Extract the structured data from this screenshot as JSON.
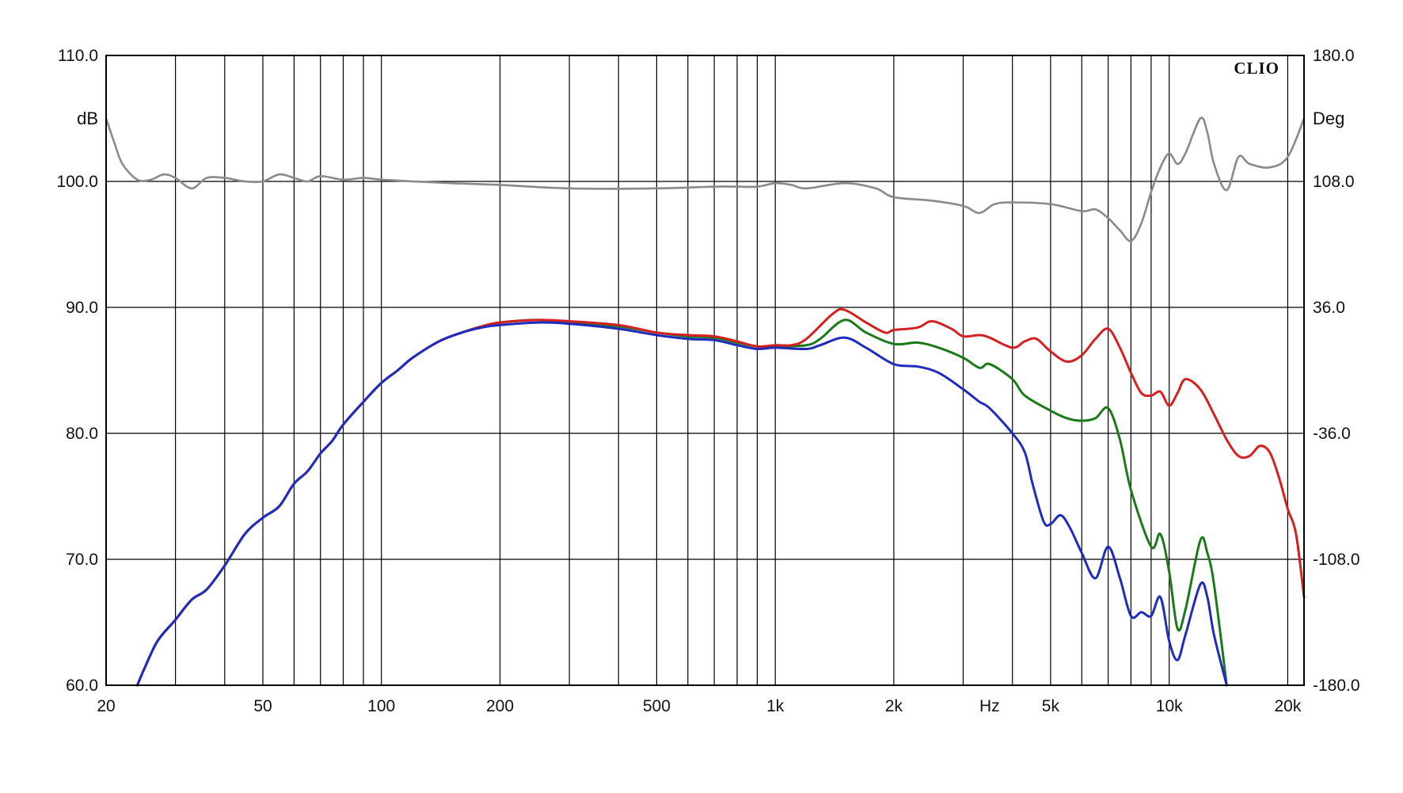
{
  "chart_data": {
    "type": "line",
    "title": "",
    "brand": "CLIO",
    "xlabel": "Hz",
    "ylabel_left": "dB",
    "ylabel_right": "Deg",
    "x_scale": "log",
    "xlim": [
      20,
      22000
    ],
    "ylim_left": [
      60,
      110
    ],
    "ylim_right": [
      -180,
      180
    ],
    "grid": true,
    "x_ticks": [
      {
        "value": 20,
        "label": "20"
      },
      {
        "value": 50,
        "label": "50"
      },
      {
        "value": 100,
        "label": "100"
      },
      {
        "value": 200,
        "label": "200"
      },
      {
        "value": 500,
        "label": "500"
      },
      {
        "value": 1000,
        "label": "1k"
      },
      {
        "value": 2000,
        "label": "2k"
      },
      {
        "value": 3500,
        "label": "Hz"
      },
      {
        "value": 5000,
        "label": "5k"
      },
      {
        "value": 10000,
        "label": "10k"
      },
      {
        "value": 20000,
        "label": "20k"
      }
    ],
    "y_ticks_left": [
      "60.0",
      "70.0",
      "80.0",
      "90.0",
      "100.0",
      "110.0"
    ],
    "y_ticks_right": [
      "-180.0",
      "-108.0",
      "-36.0",
      "36.0",
      "108.0",
      "180.0"
    ],
    "series": [
      {
        "color": "#d42020",
        "axis": "left",
        "points": [
          [
            24,
            60
          ],
          [
            25,
            61.3
          ],
          [
            27,
            63.5
          ],
          [
            30,
            65.2
          ],
          [
            33,
            66.8
          ],
          [
            36,
            67.6
          ],
          [
            40,
            69.5
          ],
          [
            45,
            72
          ],
          [
            50,
            73.3
          ],
          [
            55,
            74.2
          ],
          [
            60,
            76
          ],
          [
            65,
            77
          ],
          [
            70,
            78.4
          ],
          [
            75,
            79.4
          ],
          [
            80,
            80.7
          ],
          [
            90,
            82.5
          ],
          [
            100,
            84
          ],
          [
            110,
            85
          ],
          [
            120,
            86
          ],
          [
            140,
            87.3
          ],
          [
            160,
            88
          ],
          [
            180,
            88.5
          ],
          [
            200,
            88.8
          ],
          [
            250,
            89
          ],
          [
            300,
            88.9
          ],
          [
            400,
            88.6
          ],
          [
            500,
            88
          ],
          [
            600,
            87.8
          ],
          [
            700,
            87.7
          ],
          [
            800,
            87.3
          ],
          [
            900,
            86.9
          ],
          [
            1000,
            87
          ],
          [
            1100,
            87
          ],
          [
            1200,
            87.5
          ],
          [
            1400,
            89.5
          ],
          [
            1500,
            89.8
          ],
          [
            1700,
            88.8
          ],
          [
            1900,
            88
          ],
          [
            2000,
            88.2
          ],
          [
            2300,
            88.4
          ],
          [
            2500,
            88.9
          ],
          [
            2800,
            88.3
          ],
          [
            3000,
            87.7
          ],
          [
            3300,
            87.8
          ],
          [
            3500,
            87.6
          ],
          [
            4000,
            86.8
          ],
          [
            4300,
            87.3
          ],
          [
            4600,
            87.5
          ],
          [
            5000,
            86.5
          ],
          [
            5500,
            85.7
          ],
          [
            6000,
            86.2
          ],
          [
            6500,
            87.5
          ],
          [
            7000,
            88.3
          ],
          [
            7500,
            86.8
          ],
          [
            8000,
            84.8
          ],
          [
            8500,
            83.2
          ],
          [
            9000,
            83
          ],
          [
            9500,
            83.3
          ],
          [
            10000,
            82.2
          ],
          [
            10500,
            83.2
          ],
          [
            11000,
            84.3
          ],
          [
            12000,
            83.5
          ],
          [
            13000,
            81.5
          ],
          [
            14000,
            79.5
          ],
          [
            15000,
            78.2
          ],
          [
            16000,
            78.2
          ],
          [
            17000,
            79
          ],
          [
            18000,
            78.5
          ],
          [
            19000,
            76.5
          ],
          [
            20000,
            74
          ],
          [
            21000,
            72
          ],
          [
            22000,
            67
          ]
        ]
      },
      {
        "color": "#1a7a1a",
        "axis": "left",
        "points": [
          [
            24,
            60
          ],
          [
            25,
            61.3
          ],
          [
            27,
            63.5
          ],
          [
            30,
            65.2
          ],
          [
            33,
            66.8
          ],
          [
            36,
            67.6
          ],
          [
            40,
            69.5
          ],
          [
            45,
            72
          ],
          [
            50,
            73.3
          ],
          [
            55,
            74.2
          ],
          [
            60,
            76
          ],
          [
            65,
            77
          ],
          [
            70,
            78.4
          ],
          [
            75,
            79.4
          ],
          [
            80,
            80.7
          ],
          [
            90,
            82.5
          ],
          [
            100,
            84
          ],
          [
            110,
            85
          ],
          [
            120,
            86
          ],
          [
            140,
            87.3
          ],
          [
            160,
            88
          ],
          [
            180,
            88.5
          ],
          [
            200,
            88.8
          ],
          [
            250,
            89
          ],
          [
            300,
            88.8
          ],
          [
            400,
            88.5
          ],
          [
            500,
            88
          ],
          [
            600,
            87.7
          ],
          [
            700,
            87.6
          ],
          [
            800,
            87.2
          ],
          [
            900,
            86.9
          ],
          [
            1000,
            86.9
          ],
          [
            1200,
            87
          ],
          [
            1300,
            87.5
          ],
          [
            1500,
            89
          ],
          [
            1700,
            88
          ],
          [
            2000,
            87.1
          ],
          [
            2300,
            87.2
          ],
          [
            2600,
            86.8
          ],
          [
            3000,
            86
          ],
          [
            3300,
            85.2
          ],
          [
            3500,
            85.5
          ],
          [
            4000,
            84.3
          ],
          [
            4300,
            83
          ],
          [
            5000,
            81.8
          ],
          [
            5500,
            81.2
          ],
          [
            6000,
            81
          ],
          [
            6500,
            81.2
          ],
          [
            7000,
            82
          ],
          [
            7500,
            79.5
          ],
          [
            8000,
            75.5
          ],
          [
            9000,
            71
          ],
          [
            9500,
            72
          ],
          [
            10000,
            69
          ],
          [
            10500,
            64.5
          ],
          [
            11000,
            66
          ],
          [
            12000,
            71.5
          ],
          [
            12500,
            70.5
          ],
          [
            13000,
            68
          ],
          [
            14000,
            60
          ]
        ]
      },
      {
        "color": "#1f2bbd",
        "axis": "left",
        "points": [
          [
            24,
            60
          ],
          [
            25,
            61.3
          ],
          [
            27,
            63.5
          ],
          [
            30,
            65.2
          ],
          [
            33,
            66.8
          ],
          [
            36,
            67.6
          ],
          [
            40,
            69.5
          ],
          [
            45,
            72
          ],
          [
            50,
            73.3
          ],
          [
            55,
            74.2
          ],
          [
            60,
            76
          ],
          [
            65,
            77
          ],
          [
            70,
            78.4
          ],
          [
            75,
            79.4
          ],
          [
            80,
            80.7
          ],
          [
            90,
            82.5
          ],
          [
            100,
            84
          ],
          [
            110,
            85
          ],
          [
            120,
            86
          ],
          [
            140,
            87.3
          ],
          [
            160,
            88
          ],
          [
            180,
            88.4
          ],
          [
            200,
            88.6
          ],
          [
            250,
            88.8
          ],
          [
            300,
            88.7
          ],
          [
            400,
            88.3
          ],
          [
            500,
            87.8
          ],
          [
            600,
            87.5
          ],
          [
            700,
            87.4
          ],
          [
            800,
            87
          ],
          [
            900,
            86.7
          ],
          [
            1000,
            86.8
          ],
          [
            1200,
            86.7
          ],
          [
            1300,
            87
          ],
          [
            1500,
            87.6
          ],
          [
            1700,
            86.8
          ],
          [
            2000,
            85.5
          ],
          [
            2300,
            85.3
          ],
          [
            2600,
            84.8
          ],
          [
            3000,
            83.5
          ],
          [
            3300,
            82.5
          ],
          [
            3500,
            82
          ],
          [
            4000,
            80
          ],
          [
            4300,
            78.5
          ],
          [
            4500,
            76
          ],
          [
            4800,
            73
          ],
          [
            5000,
            72.8
          ],
          [
            5300,
            73.5
          ],
          [
            5600,
            72.5
          ],
          [
            6000,
            70.5
          ],
          [
            6500,
            68.5
          ],
          [
            7000,
            71
          ],
          [
            7500,
            68.5
          ],
          [
            8000,
            65.5
          ],
          [
            8500,
            65.8
          ],
          [
            9000,
            65.5
          ],
          [
            9500,
            67
          ],
          [
            10000,
            63.5
          ],
          [
            10500,
            62
          ],
          [
            11000,
            64
          ],
          [
            12000,
            68
          ],
          [
            12500,
            67
          ],
          [
            13000,
            64
          ],
          [
            14000,
            60
          ]
        ]
      },
      {
        "color": "#8a8a8a",
        "axis": "right",
        "points": [
          [
            20,
            144
          ],
          [
            21,
            130
          ],
          [
            22,
            118
          ],
          [
            24,
            109
          ],
          [
            26,
            109
          ],
          [
            28,
            112
          ],
          [
            30,
            110
          ],
          [
            33,
            104
          ],
          [
            36,
            110
          ],
          [
            40,
            110
          ],
          [
            45,
            108
          ],
          [
            50,
            108
          ],
          [
            55,
            112
          ],
          [
            60,
            110
          ],
          [
            65,
            108
          ],
          [
            70,
            111
          ],
          [
            80,
            109
          ],
          [
            90,
            110
          ],
          [
            100,
            109
          ],
          [
            120,
            108
          ],
          [
            150,
            107
          ],
          [
            200,
            106
          ],
          [
            300,
            104
          ],
          [
            500,
            104
          ],
          [
            700,
            105
          ],
          [
            800,
            105
          ],
          [
            900,
            105
          ],
          [
            1000,
            107
          ],
          [
            1100,
            106
          ],
          [
            1200,
            104
          ],
          [
            1500,
            107
          ],
          [
            1800,
            104
          ],
          [
            2000,
            99
          ],
          [
            2500,
            97
          ],
          [
            3000,
            94
          ],
          [
            3300,
            90
          ],
          [
            3600,
            95
          ],
          [
            4000,
            96
          ],
          [
            5000,
            95
          ],
          [
            6000,
            91
          ],
          [
            6500,
            92
          ],
          [
            7000,
            87
          ],
          [
            7500,
            80
          ],
          [
            8000,
            74
          ],
          [
            8500,
            84
          ],
          [
            9000,
            102
          ],
          [
            9500,
            116
          ],
          [
            10000,
            124
          ],
          [
            10500,
            118
          ],
          [
            11000,
            124
          ],
          [
            12000,
            144
          ],
          [
            12500,
            136
          ],
          [
            13000,
            118
          ],
          [
            14000,
            103
          ],
          [
            15000,
            122
          ],
          [
            16000,
            118
          ],
          [
            18000,
            116
          ],
          [
            20000,
            122
          ],
          [
            22000,
            144
          ]
        ]
      }
    ]
  }
}
